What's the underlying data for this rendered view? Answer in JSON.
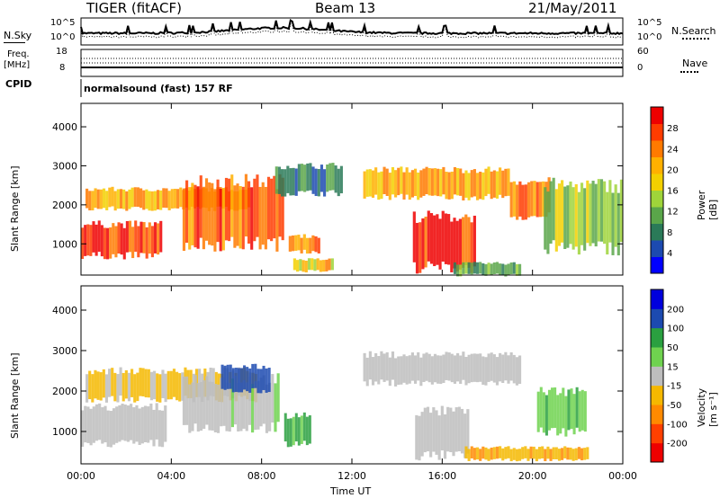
{
  "header": {
    "radar": "TIGER (fitACF)",
    "beam": "Beam 13",
    "date": "21/May/2011"
  },
  "status_panels": {
    "nsky_label": "N.Sky",
    "nsearch_label": "N.Search",
    "freq_label_line1": "Freq.",
    "freq_label_line2": "[MHz]",
    "nave_label": "Nave",
    "cpid_label": "CPID",
    "cpid_value": "normalsound (fast) 157 RF",
    "noise_ticks": [
      "10^5",
      "10^0"
    ],
    "freq_ticks": [
      "18",
      "8"
    ],
    "nave_ticks": [
      "60",
      "0"
    ]
  },
  "chart_data": [
    {
      "type": "heatmap",
      "name": "Power",
      "ylabel": "Slant Range [km]",
      "ylim": [
        200,
        4600
      ],
      "yticks": [
        "4000",
        "3000",
        "2000",
        "1000"
      ],
      "xlim": [
        "00:00",
        "24:00"
      ],
      "colorbar_label": "Power [dB]",
      "colorbar_ticks": [
        "28",
        "24",
        "20",
        "16",
        "12",
        "8",
        "4"
      ],
      "colorbar_range": [
        0,
        30
      ],
      "colors": [
        "#0000ff",
        "#1c4ab0",
        "#2a7a58",
        "#5aa64a",
        "#9fd43a",
        "#f3d000",
        "#ffb000",
        "#ff7a00",
        "#ff3c00",
        "#ee0000"
      ],
      "echo_bands": [
        {
          "t0": 0.0,
          "t1": 3.6,
          "r0": 700,
          "r1": 1500,
          "p": 26
        },
        {
          "t0": 0.2,
          "t1": 7.5,
          "r0": 1900,
          "r1": 2400,
          "p": 20
        },
        {
          "t0": 4.5,
          "t1": 9.0,
          "r0": 1000,
          "r1": 2600,
          "p": 24
        },
        {
          "t0": 8.6,
          "t1": 11.6,
          "r0": 2300,
          "r1": 3000,
          "p": 8
        },
        {
          "t0": 9.2,
          "t1": 10.6,
          "r0": 800,
          "r1": 1200,
          "p": 22
        },
        {
          "t0": 9.4,
          "t1": 11.2,
          "r0": 300,
          "r1": 600,
          "p": 18
        },
        {
          "t0": 12.5,
          "t1": 19.0,
          "r0": 2200,
          "r1": 2900,
          "p": 20
        },
        {
          "t0": 14.7,
          "t1": 17.5,
          "r0": 400,
          "r1": 1700,
          "p": 27
        },
        {
          "t0": 16.5,
          "t1": 19.5,
          "r0": 200,
          "r1": 500,
          "p": 10
        },
        {
          "t0": 19.0,
          "t1": 20.8,
          "r0": 1700,
          "r1": 2600,
          "p": 22
        },
        {
          "t0": 20.5,
          "t1": 24.0,
          "r0": 900,
          "r1": 2500,
          "p": 12
        }
      ]
    },
    {
      "type": "heatmap",
      "name": "Velocity",
      "ylabel": "Slant Range [km]",
      "xlabel": "Time UT",
      "ylim": [
        200,
        4600
      ],
      "yticks": [
        "4000",
        "3000",
        "2000",
        "1000"
      ],
      "xticks": [
        "00:00",
        "04:00",
        "08:00",
        "12:00",
        "16:00",
        "20:00",
        "00:00"
      ],
      "colorbar_label": "Velocity [m s⁻¹]",
      "colorbar_ticks": [
        "200",
        "100",
        "50",
        "15",
        "-15",
        "-50",
        "-100",
        "-200"
      ],
      "colors": [
        "#ee0000",
        "#ff4000",
        "#ff8a00",
        "#f5b800",
        "#bdbdbd",
        "#6fd24f",
        "#2aa040",
        "#1c4ab0",
        "#0000dd"
      ],
      "echo_bands": [
        {
          "t0": 0.0,
          "t1": 3.8,
          "r0": 700,
          "r1": 1600,
          "v": 0
        },
        {
          "t0": 0.2,
          "t1": 7.8,
          "r0": 1800,
          "r1": 2500,
          "v": -20
        },
        {
          "t0": 4.5,
          "t1": 8.8,
          "r0": 1100,
          "r1": 2300,
          "v": 5
        },
        {
          "t0": 6.2,
          "t1": 8.4,
          "r0": 2000,
          "r1": 2600,
          "v": 150
        },
        {
          "t0": 9.0,
          "t1": 10.2,
          "r0": 700,
          "r1": 1400,
          "v": 60
        },
        {
          "t0": 12.5,
          "t1": 19.5,
          "r0": 2200,
          "r1": 2900,
          "v": 0
        },
        {
          "t0": 14.8,
          "t1": 17.2,
          "r0": 400,
          "r1": 1500,
          "v": 0
        },
        {
          "t0": 17.0,
          "t1": 22.5,
          "r0": 300,
          "r1": 600,
          "v": -45
        },
        {
          "t0": 20.2,
          "t1": 22.4,
          "r0": 1000,
          "r1": 2000,
          "v": 40
        }
      ]
    }
  ]
}
